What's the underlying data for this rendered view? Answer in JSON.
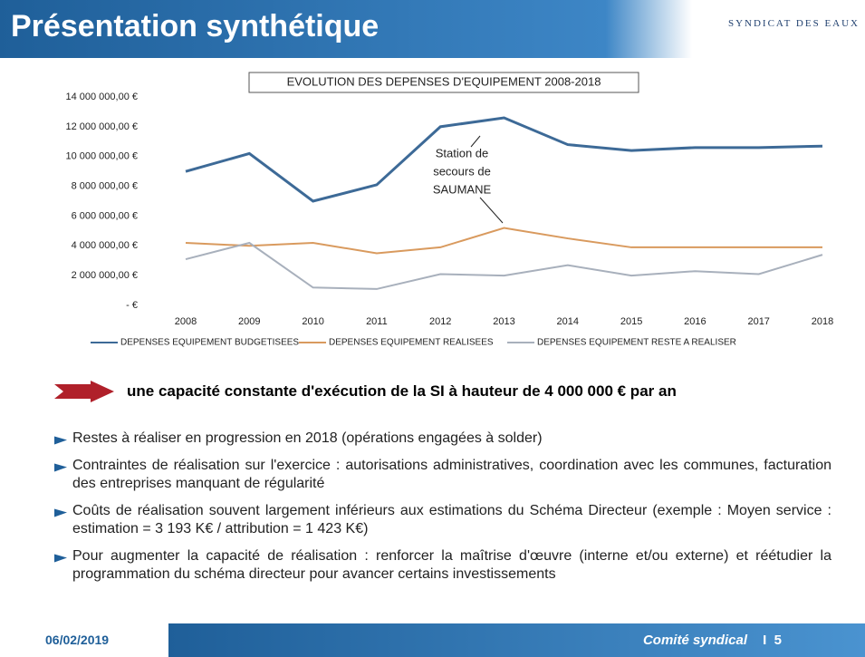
{
  "header": {
    "title": "Présentation synthétique",
    "logo": "SYNDICAT DES EAUX"
  },
  "chart_data": {
    "type": "line",
    "title": "EVOLUTION DES DEPENSES D'EQUIPEMENT 2008-2018",
    "x": [
      2008,
      2009,
      2010,
      2011,
      2012,
      2013,
      2014,
      2015,
      2016,
      2017,
      2018
    ],
    "xlim": [
      2008,
      2018
    ],
    "xticks": [
      2008,
      2009,
      2010,
      2011,
      2012,
      2013,
      2014,
      2015,
      2016,
      2017,
      2018
    ],
    "ylim": [
      0,
      14000000
    ],
    "yticks": [
      {
        "value": 0,
        "label": "- €"
      },
      {
        "value": 2000000,
        "label": "2 000 000,00 €"
      },
      {
        "value": 4000000,
        "label": "4 000 000,00 €"
      },
      {
        "value": 6000000,
        "label": "6 000 000,00 €"
      },
      {
        "value": 8000000,
        "label": "8 000 000,00 €"
      },
      {
        "value": 10000000,
        "label": "10 000 000,00 €"
      },
      {
        "value": 12000000,
        "label": "12 000 000,00 €"
      },
      {
        "value": 14000000,
        "label": "14 000 000,00 €"
      }
    ],
    "grid": false,
    "series": [
      {
        "name": "DEPENSES EQUIPEMENT BUDGETISEES",
        "color": "#3d6a97",
        "values": [
          9000000,
          10200000,
          7000000,
          8100000,
          12000000,
          12600000,
          10800000,
          10400000,
          10600000,
          10600000,
          10700000
        ]
      },
      {
        "name": "DEPENSES EQUIPEMENT REALISEES",
        "color": "#d99a5e",
        "values": [
          4200000,
          4000000,
          4200000,
          3500000,
          3900000,
          5200000,
          4500000,
          3900000,
          3900000,
          3900000,
          3900000
        ]
      },
      {
        "name": "DEPENSES EQUIPEMENT RESTE A REALISER",
        "color": "#a8b0bc",
        "values": [
          3100000,
          4200000,
          1200000,
          1100000,
          2100000,
          2000000,
          2700000,
          2000000,
          2300000,
          2100000,
          3400000
        ]
      }
    ],
    "annotation": [
      "Station de",
      "secours de",
      "SAUMANE"
    ]
  },
  "highlight": "une capacité constante d'exécution de la SI à hauteur de 4 000 000 € par an",
  "bullets": [
    "Restes à réaliser en progression en 2018 (opérations engagées à solder)",
    "Contraintes de réalisation sur l'exercice : autorisations administratives, coordination avec les communes, facturation des entreprises manquant de régularité",
    "Coûts de réalisation souvent largement inférieurs aux estimations du Schéma Directeur (exemple : Moyen service : estimation = 3 193 K€ / attribution = 1 423 K€)",
    "Pour augmenter la capacité de réalisation : renforcer la maîtrise d'œuvre (interne et/ou externe) et réétudier la programmation du schéma directeur pour avancer certains investissements"
  ],
  "footer": {
    "date": "06/02/2019",
    "label": "Comité syndical",
    "page": "5"
  }
}
